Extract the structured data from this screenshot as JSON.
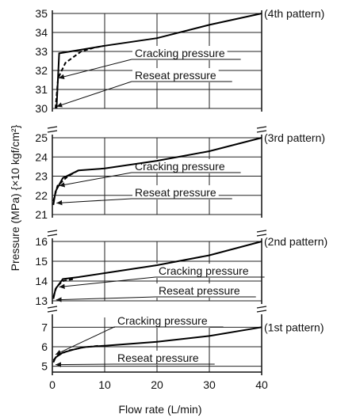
{
  "chart_data": {
    "type": "line",
    "xlabel": "Flow rate (L/min)",
    "ylabel": "Pressure (MPa) {×10 kgf/cm²}",
    "xlim": [
      0,
      40
    ],
    "x_ticks": [
      "0",
      "10",
      "20",
      "30",
      "40"
    ],
    "grid": true,
    "panels": [
      {
        "name": "(4th pattern)",
        "ylim": [
          30,
          35
        ],
        "y_ticks": [
          "30",
          "31",
          "32",
          "33",
          "34",
          "35"
        ],
        "series": [
          {
            "style": "solid",
            "x": [
              0.8,
              1.3,
              10,
              20,
              30,
              40
            ],
            "y": [
              30.0,
              32.9,
              33.3,
              33.7,
              34.4,
              35.0
            ]
          },
          {
            "style": "dashed",
            "x": [
              0.6,
              1.1,
              2.5,
              5.5,
              8,
              10
            ],
            "y": [
              30.0,
              31.6,
              32.4,
              33.0,
              33.2,
              33.3
            ]
          }
        ],
        "annotations": [
          {
            "text": "Cracking pressure",
            "arrow_x": 0.9,
            "arrow_y": 31.6
          },
          {
            "text": "Reseat pressure",
            "arrow_x": 0.5,
            "arrow_y": 30.1
          }
        ]
      },
      {
        "name": "(3rd pattern)",
        "ylim": [
          21,
          25
        ],
        "y_ticks": [
          "21",
          "22",
          "23",
          "24",
          "25"
        ],
        "series": [
          {
            "style": "solid",
            "x": [
              0.2,
              0.6,
              2,
              5,
              10,
              20,
              30,
              40
            ],
            "y": [
              21.5,
              22.2,
              22.9,
              23.3,
              23.4,
              23.8,
              24.3,
              25.0
            ]
          },
          {
            "style": "dashed",
            "x": [
              0.2,
              1,
              3,
              5
            ],
            "y": [
              21.7,
              22.5,
              23.0,
              23.3
            ]
          }
        ],
        "annotations": [
          {
            "text": "Cracking pressure",
            "arrow_x": 1.0,
            "arrow_y": 22.5
          },
          {
            "text": "Reseat pressure",
            "arrow_x": 0.5,
            "arrow_y": 21.6
          }
        ]
      },
      {
        "name": "(2nd pattern)",
        "ylim": [
          13,
          16
        ],
        "y_ticks": [
          "13",
          "14",
          "15",
          "16"
        ],
        "series": [
          {
            "style": "solid",
            "x": [
              0.2,
              0.6,
              2,
              5,
              10,
              20,
              30,
              40
            ],
            "y": [
              13.1,
              13.6,
              14.1,
              14.2,
              14.4,
              14.8,
              15.3,
              16.0
            ]
          },
          {
            "style": "dashed",
            "x": [
              0.2,
              0.8,
              2,
              4
            ],
            "y": [
              13.2,
              13.7,
              14.0,
              14.1
            ]
          }
        ],
        "annotations": [
          {
            "text": "Cracking pressure",
            "arrow_x": 1.0,
            "arrow_y": 13.7
          },
          {
            "text": "Reseat pressure",
            "arrow_x": 0.4,
            "arrow_y": 13.05
          }
        ]
      },
      {
        "name": "(1st pattern)",
        "ylim": [
          4.7,
          7.5
        ],
        "y_ticks": [
          "5",
          "6",
          "7"
        ],
        "series": [
          {
            "style": "solid",
            "x": [
              0.2,
              0.6,
              2,
              4,
              6,
              10,
              20,
              30,
              40
            ],
            "y": [
              5.2,
              5.45,
              5.7,
              5.85,
              5.98,
              6.05,
              6.25,
              6.55,
              7.0
            ]
          },
          {
            "style": "dashed",
            "x": [
              0.2,
              1,
              3,
              6,
              9
            ],
            "y": [
              5.3,
              5.55,
              5.8,
              5.97,
              6.05
            ]
          }
        ],
        "annotations": [
          {
            "text": "Cracking pressure",
            "arrow_x": 0.3,
            "arrow_y": 5.6
          },
          {
            "text": "Reseat pressure",
            "arrow_x": 0.3,
            "arrow_y": 5.08
          }
        ]
      }
    ]
  }
}
